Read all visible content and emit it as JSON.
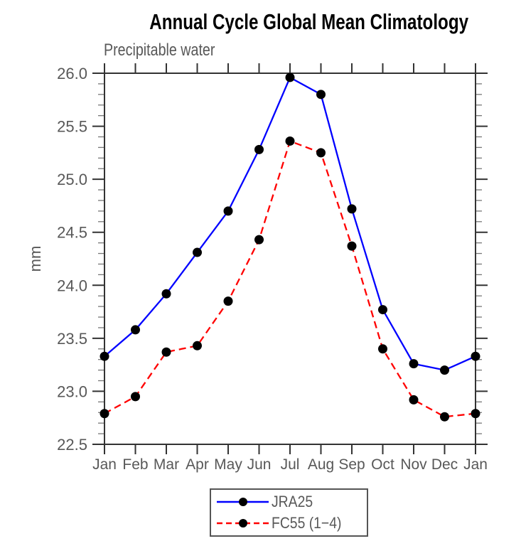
{
  "chart_data": {
    "type": "line",
    "title": "Annual Cycle Global Mean Climatology",
    "subtitle": "Precipitable water",
    "ylabel": "mm",
    "xlabel": "",
    "categories": [
      "Jan",
      "Feb",
      "Mar",
      "Apr",
      "May",
      "Jun",
      "Jul",
      "Aug",
      "Sep",
      "Oct",
      "Nov",
      "Dec",
      "Jan"
    ],
    "ylim": [
      22.5,
      26.0
    ],
    "ytick_step": 0.5,
    "yminor_step": 0.1,
    "ytick_labels": [
      "22.5",
      "23.0",
      "23.5",
      "24.0",
      "24.5",
      "25.0",
      "25.5",
      "26.0"
    ],
    "grid": false,
    "legend_position": "bottom-center",
    "series": [
      {
        "name": "JRA25",
        "color": "#0000ff",
        "style": "solid",
        "marker": "circle",
        "marker_color": "#000000",
        "values": [
          23.33,
          23.58,
          23.92,
          24.31,
          24.7,
          25.28,
          25.96,
          25.8,
          24.72,
          23.77,
          23.26,
          23.2,
          23.33
        ]
      },
      {
        "name": "FC55 (1−4)",
        "color": "#ff0000",
        "style": "dashed",
        "marker": "circle",
        "marker_color": "#000000",
        "values": [
          22.79,
          22.95,
          23.37,
          23.43,
          23.85,
          24.43,
          25.36,
          25.25,
          24.37,
          23.4,
          22.92,
          22.76,
          22.79
        ]
      }
    ],
    "colors": {
      "background": "#ffffff",
      "axis": "#333333",
      "minor_tick": "#777777",
      "tick_labels": "#585858",
      "title": "#000000",
      "legend_border": "#555555"
    }
  }
}
